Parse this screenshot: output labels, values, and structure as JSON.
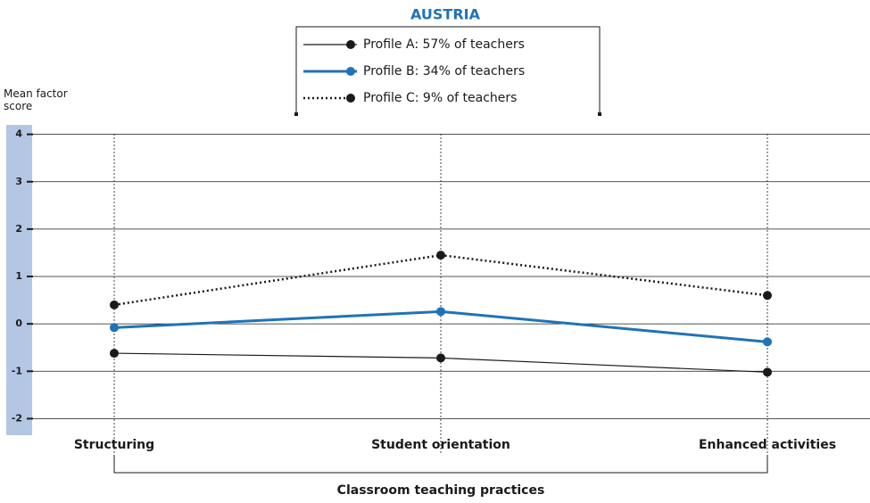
{
  "chart_data": {
    "type": "line",
    "title": "AUSTRIA",
    "y_label": "Mean factor score",
    "x_label": "Classroom teaching practices",
    "categories": [
      "Structuring",
      "Student orientation",
      "Enhanced activities"
    ],
    "series": [
      {
        "name": "Profile A:  57% of teachers",
        "color": "#1a1a1a",
        "style": "solid",
        "values": [
          -0.62,
          -0.72,
          -1.02
        ]
      },
      {
        "name": "Profile B:  34% of teachers",
        "color": "#1f73b7",
        "style": "solid",
        "values": [
          -0.08,
          0.26,
          -0.38
        ]
      },
      {
        "name": "Profile C:  9% of teachers",
        "color": "#1a1a1a",
        "style": "dotted",
        "values": [
          0.4,
          1.45,
          0.6
        ]
      }
    ],
    "ylim": [
      -2.35,
      4.2
    ],
    "yticks": [
      -2,
      -1,
      0,
      1,
      2,
      3,
      4
    ],
    "grid": true
  }
}
